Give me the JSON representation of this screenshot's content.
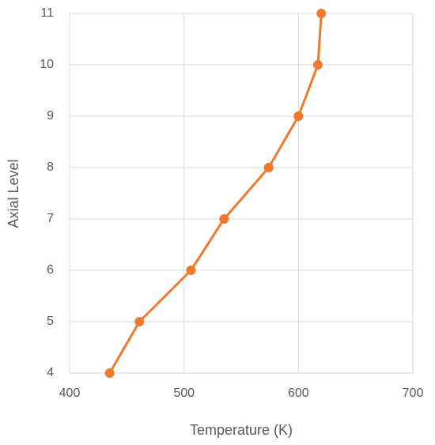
{
  "chart_data": {
    "type": "line",
    "x": [
      435,
      461,
      506,
      535,
      574,
      600,
      617,
      620
    ],
    "values": [
      4,
      5,
      6,
      7,
      8,
      9,
      10,
      11
    ],
    "color": "#f07a2c",
    "xlabel": "Temperature  (K)",
    "ylabel": "Axial Level",
    "xlim": [
      400,
      700
    ],
    "xticks": [
      400,
      500,
      600,
      700
    ],
    "ylim": [
      4,
      11
    ],
    "yticks": [
      4,
      5,
      6,
      7,
      8,
      9,
      10,
      11
    ],
    "grid": true
  }
}
